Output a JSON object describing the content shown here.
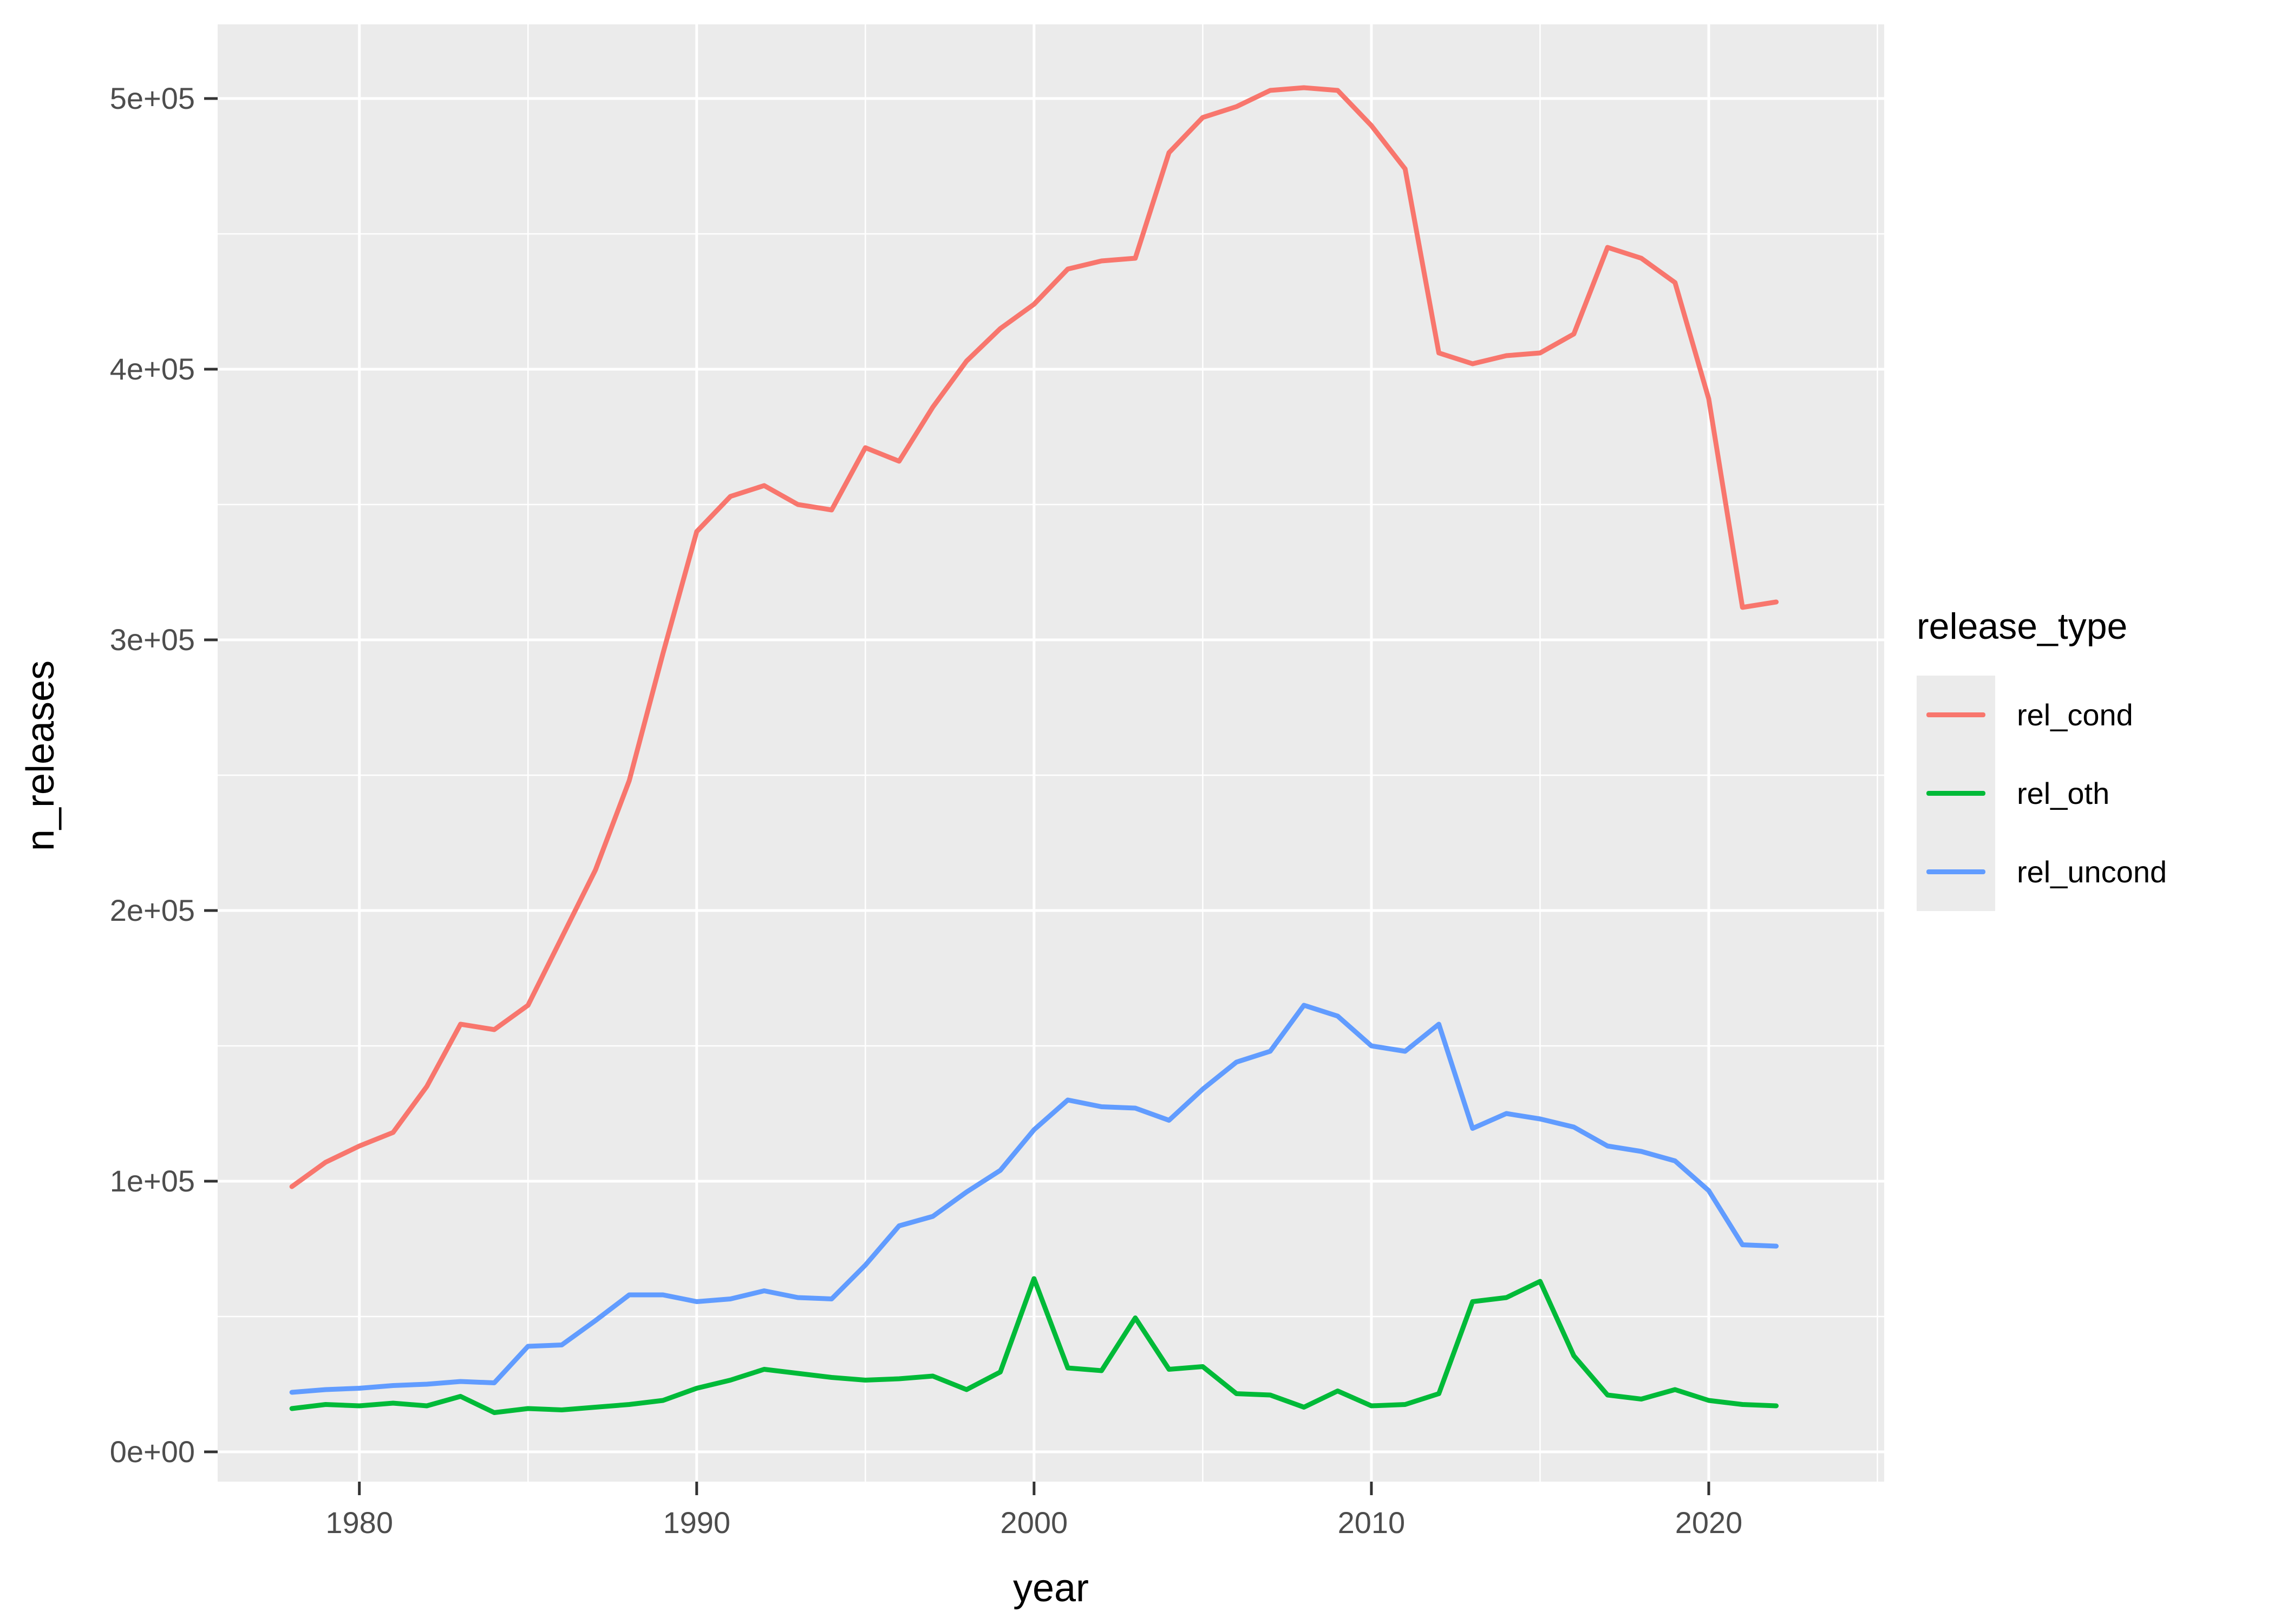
{
  "chart_data": {
    "type": "line",
    "title": "",
    "xlabel": "year",
    "ylabel": "n_releases",
    "legend_title": "release_type",
    "legend_position": "right",
    "grid": "white major and minor gridlines on gray panel",
    "xlim": [
      1975.8,
      2025.2
    ],
    "ylim": [
      -11000,
      527400
    ],
    "x_tick_values": [
      1980,
      1990,
      2000,
      2010,
      2020
    ],
    "x_tick_labels": [
      "1980",
      "1990",
      "2000",
      "2010",
      "2020"
    ],
    "x_minor_values": [
      1985,
      1995,
      2005,
      2015,
      2025
    ],
    "y_tick_values": [
      0,
      100000,
      200000,
      300000,
      400000,
      500000
    ],
    "y_tick_labels": [
      "0e+00",
      "1e+05",
      "2e+05",
      "3e+05",
      "4e+05",
      "5e+05"
    ],
    "y_minor_values": [
      50000,
      150000,
      250000,
      350000,
      450000
    ],
    "x": [
      1978,
      1979,
      1980,
      1981,
      1982,
      1983,
      1984,
      1985,
      1986,
      1987,
      1988,
      1989,
      1990,
      1991,
      1992,
      1993,
      1994,
      1995,
      1996,
      1997,
      1998,
      1999,
      2000,
      2001,
      2002,
      2003,
      2004,
      2005,
      2006,
      2007,
      2008,
      2009,
      2010,
      2011,
      2012,
      2013,
      2014,
      2015,
      2016,
      2017,
      2018,
      2019,
      2020,
      2021,
      2022
    ],
    "series": [
      {
        "name": "rel_cond",
        "color": "#F8766D",
        "values": [
          98000,
          107000,
          113000,
          118000,
          135000,
          158000,
          156000,
          165000,
          190000,
          215000,
          248000,
          295000,
          340000,
          353000,
          357000,
          350000,
          348000,
          371000,
          366000,
          386000,
          403000,
          415000,
          424000,
          437000,
          440000,
          441000,
          480000,
          493000,
          497000,
          503000,
          504000,
          503000,
          490000,
          474000,
          406000,
          402000,
          405000,
          406000,
          413000,
          445000,
          441000,
          432000,
          389000,
          312000,
          314000
        ]
      },
      {
        "name": "rel_oth",
        "color": "#00BA38",
        "values": [
          16000,
          17500,
          17000,
          18000,
          17000,
          20500,
          14500,
          16000,
          15500,
          16500,
          17500,
          19000,
          23500,
          26500,
          30500,
          29000,
          27500,
          26500,
          27000,
          28000,
          23000,
          29500,
          64000,
          31000,
          30000,
          49500,
          30500,
          31500,
          21500,
          21000,
          16500,
          22500,
          17000,
          17500,
          21500,
          55500,
          57000,
          63000,
          35500,
          21000,
          19500,
          23000,
          19000,
          17500,
          17000
        ]
      },
      {
        "name": "rel_uncond",
        "color": "#619CFF",
        "values": [
          22000,
          23000,
          23500,
          24500,
          25000,
          26000,
          25500,
          39000,
          39500,
          48500,
          58000,
          58000,
          55500,
          56500,
          59500,
          57000,
          56500,
          69000,
          83500,
          87000,
          96000,
          104000,
          119000,
          130000,
          127500,
          127000,
          122500,
          134000,
          144000,
          148000,
          165000,
          161000,
          150000,
          148000,
          158000,
          119500,
          125000,
          123000,
          120000,
          113000,
          111000,
          107500,
          96500,
          76500,
          76000
        ]
      }
    ],
    "colors": {
      "panel_background": "#EBEBEB",
      "gridline": "#FFFFFF",
      "axis_text": "#4D4D4D",
      "axis_title": "#000000",
      "tick_mark": "#333333",
      "legend_key_background": "#EBEBEB",
      "figure_background": "#FFFFFF"
    }
  }
}
